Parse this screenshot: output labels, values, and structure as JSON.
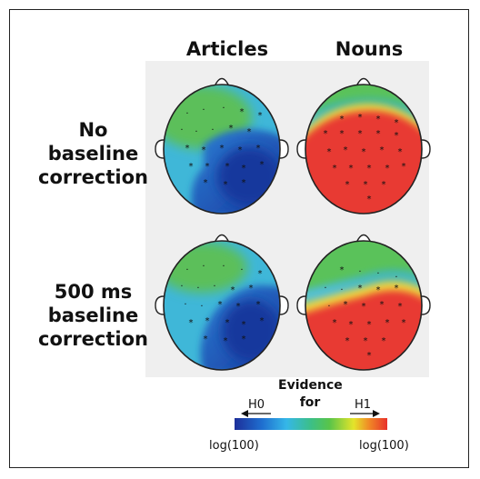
{
  "columns": [
    {
      "title": "Articles"
    },
    {
      "title": "Nouns"
    }
  ],
  "rows": [
    {
      "label_lines": [
        "No",
        "baseline",
        "correction"
      ]
    },
    {
      "label_lines": [
        "500 ms",
        "baseline",
        "correction"
      ]
    }
  ],
  "colorbar": {
    "title_lines": [
      "Evidence",
      "for"
    ],
    "left_hypothesis": "H0",
    "right_hypothesis": "H1",
    "left_value": "log(100)",
    "right_value": "log(100)",
    "colors": [
      "#1d2f9a",
      "#1f6fd0",
      "#35b7e8",
      "#3cbf87",
      "#58c44a",
      "#e4e42a",
      "#f08a26",
      "#e8312a"
    ]
  },
  "colors": {
    "h0_strong": "#1f3fae",
    "h0_weak": "#43b7e3",
    "neutral": "#5cbf5a",
    "h1_strong": "#e83a33",
    "h1_mid": "#f3d23a"
  }
}
